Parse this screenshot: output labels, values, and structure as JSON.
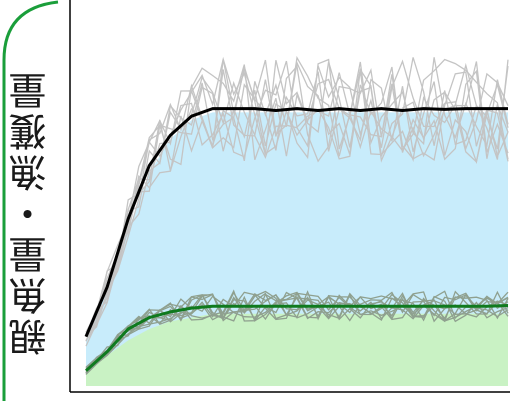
{
  "chart_data": {
    "type": "line",
    "title": "",
    "xlabel": "",
    "ylabel": "親魚量・漁獲量",
    "xlim": [
      0,
      100
    ],
    "ylim": [
      0,
      100
    ],
    "grid": false,
    "legend": "none",
    "x": [
      0,
      5,
      10,
      15,
      20,
      25,
      30,
      35,
      40,
      45,
      50,
      55,
      60,
      65,
      70,
      75,
      80,
      85,
      90,
      95,
      100
    ],
    "areas": [
      {
        "values": [
          12,
          25,
          41,
          56,
          65,
          70,
          72,
          72,
          72,
          72,
          72,
          72,
          72,
          72,
          72,
          72,
          72,
          72,
          72,
          72,
          72
        ],
        "color": "#c8ecfb"
      },
      {
        "values": [
          4,
          8,
          12,
          15,
          17,
          18,
          19,
          19,
          19,
          19,
          19,
          19,
          19,
          19,
          19,
          19,
          19,
          19,
          19,
          19,
          19
        ],
        "color": "#c9f2c4"
      }
    ],
    "series": [
      {
        "role": "mean-spawning",
        "color": "#000000",
        "values": [
          13,
          26,
          44,
          58,
          66,
          71,
          73,
          73,
          73,
          72.5,
          73,
          72.5,
          73,
          72.5,
          73,
          72.5,
          73,
          72.8,
          73,
          73,
          73
        ]
      },
      {
        "role": "mean-catch",
        "color": "#0f7a1e",
        "values": [
          4,
          9,
          15,
          18,
          19.5,
          20.5,
          21,
          21,
          21,
          21,
          21,
          21,
          21,
          21,
          21,
          21,
          21,
          21,
          21,
          21,
          21.2
        ]
      }
    ],
    "trials_upper": {
      "color": "#c4c4c4",
      "count": 10,
      "base_series": "mean-spawning",
      "spread": 14
    },
    "trials_lower": {
      "color": "#8fa08f",
      "count": 10,
      "base_series": "mean-catch",
      "spread": 4
    },
    "colors": {
      "frame_border": "#1a9e3a"
    }
  }
}
